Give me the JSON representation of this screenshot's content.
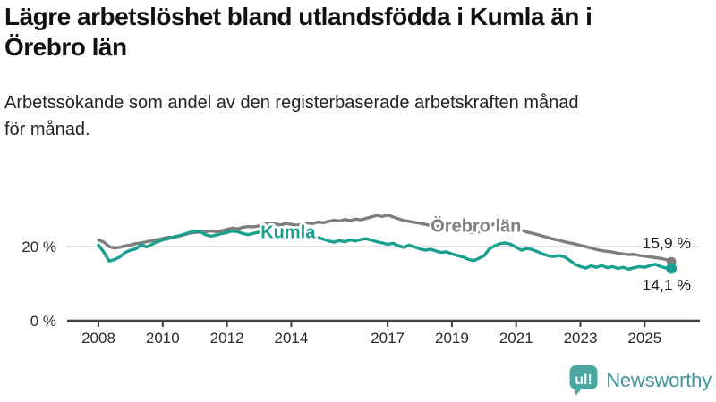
{
  "title": {
    "lines": [
      "Lägre arbetslöshet bland utlandsfödda i Kumla än i",
      "Örebro län"
    ]
  },
  "subtitle": {
    "lines": [
      "Arbetssökande som andel av den registerbaserade arbetskraften månad",
      "för månad."
    ]
  },
  "colors": {
    "kumla": "#1aa08e",
    "orebro": "#7e7e7e",
    "axis": "#3f3f3f",
    "grid": "#d9d9d9",
    "tick_text": "#2b2b2b",
    "value_text": "#1a1a1a",
    "logo_icon": "#4ba7a2",
    "logo_text": "#43939c"
  },
  "chart_data": {
    "type": "line",
    "x_start": 2008.0,
    "x_step": 0.1666667,
    "x_ticks": [
      2008,
      2010,
      2012,
      2014,
      2017,
      2019,
      2021,
      2023,
      2025
    ],
    "y_ticks": [
      {
        "value": 20,
        "label": "20 %"
      },
      {
        "value": 0,
        "label": "0 %"
      }
    ],
    "ylim": [
      0,
      30
    ],
    "xlim": [
      2008,
      2025.9
    ],
    "grid": "y-only",
    "legend_position": "inline-labels",
    "series": [
      {
        "name": "Örebro län",
        "color_key": "orebro",
        "end_label": "15,9 %",
        "end_label_side": "above",
        "label_anchor": {
          "year": 2019.75,
          "value": 25.0
        },
        "values": [
          21.8,
          21.2,
          20.0,
          19.6,
          19.8,
          20.2,
          20.4,
          20.8,
          21.0,
          21.3,
          21.6,
          21.9,
          22.2,
          22.5,
          22.4,
          22.8,
          23.2,
          23.6,
          23.8,
          23.9,
          24.0,
          24.2,
          24.0,
          24.3,
          24.6,
          25.0,
          24.8,
          25.2,
          25.4,
          25.3,
          25.6,
          26.0,
          26.3,
          26.1,
          25.8,
          26.2,
          26.0,
          25.7,
          26.1,
          26.4,
          26.2,
          26.6,
          26.4,
          26.8,
          27.1,
          26.9,
          27.3,
          27.0,
          27.4,
          27.2,
          27.6,
          28.0,
          28.4,
          28.1,
          28.5,
          28.0,
          27.5,
          27.0,
          26.8,
          26.5,
          26.3,
          26.0,
          25.7,
          25.5,
          25.2,
          25.0,
          24.7,
          24.4,
          24.2,
          23.9,
          23.7,
          24.0,
          24.5,
          25.5,
          26.2,
          26.5,
          26.3,
          25.8,
          25.0,
          24.4,
          23.9,
          23.6,
          23.2,
          22.8,
          22.4,
          22.0,
          21.7,
          21.3,
          21.0,
          20.7,
          20.3,
          20.0,
          19.6,
          19.2,
          18.9,
          18.7,
          18.5,
          18.2,
          18.0,
          17.8,
          17.9,
          17.6,
          17.4,
          17.2,
          17.0,
          16.8,
          16.5,
          15.9
        ]
      },
      {
        "name": "Kumla",
        "color_key": "kumla",
        "end_label": "14,1 %",
        "end_label_side": "below",
        "label_anchor": {
          "year": 2013.9,
          "value": 23.3
        },
        "values": [
          20.4,
          18.5,
          16.1,
          16.5,
          17.2,
          18.4,
          19.0,
          19.4,
          20.5,
          19.9,
          20.6,
          21.3,
          21.8,
          22.1,
          22.6,
          22.9,
          23.3,
          23.8,
          24.2,
          24.0,
          23.2,
          22.8,
          23.1,
          23.5,
          23.8,
          24.2,
          24.0,
          23.5,
          23.2,
          23.6,
          23.9,
          23.5,
          23.2,
          23.6,
          23.1,
          22.9,
          23.3,
          22.8,
          23.0,
          22.5,
          22.7,
          22.4,
          22.0,
          21.5,
          21.2,
          21.6,
          21.3,
          21.8,
          21.5,
          21.9,
          22.1,
          21.7,
          21.3,
          21.0,
          20.6,
          20.9,
          20.2,
          19.8,
          20.4,
          19.9,
          19.4,
          19.0,
          19.3,
          18.8,
          18.4,
          18.6,
          18.0,
          17.6,
          17.2,
          16.6,
          16.2,
          16.8,
          17.5,
          19.4,
          20.2,
          20.8,
          21.0,
          20.6,
          19.8,
          19.0,
          19.5,
          19.2,
          18.6,
          18.0,
          17.5,
          17.3,
          17.6,
          17.2,
          16.3,
          15.2,
          14.6,
          14.2,
          14.8,
          14.4,
          14.9,
          14.3,
          14.6,
          14.1,
          14.4,
          13.9,
          14.3,
          14.6,
          14.4,
          14.9,
          15.2,
          14.6,
          14.2,
          14.1
        ]
      }
    ]
  },
  "logo": {
    "icon_glyph": "ul!",
    "text": "Newsworthy"
  }
}
